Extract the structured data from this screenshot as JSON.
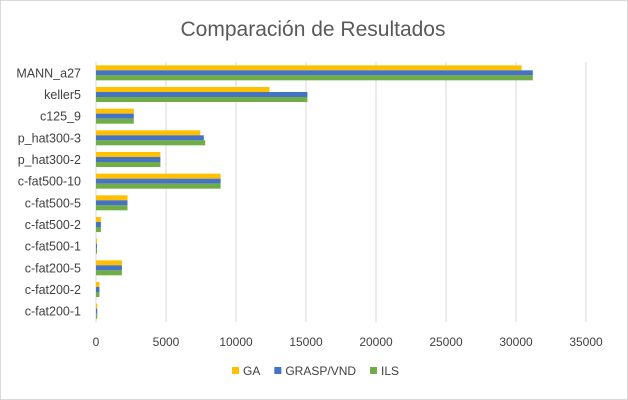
{
  "chart_data": {
    "type": "bar",
    "orientation": "horizontal",
    "title": "Comparación de Resultados",
    "xlabel": "",
    "ylabel": "",
    "xlim": [
      0,
      35000
    ],
    "xticks": [
      0,
      5000,
      10000,
      15000,
      20000,
      25000,
      30000,
      35000
    ],
    "xtick_labels": [
      "0",
      "5000",
      "10000",
      "15000",
      "20000",
      "25000",
      "30000",
      "35000"
    ],
    "grid": true,
    "legend_position": "bottom",
    "categories": [
      "MANN_a27",
      "keller5",
      "c125_9",
      "p_hat300-3",
      "p_hat300-2",
      "c-fat500-10",
      "c-fat500-5",
      "c-fat500-2",
      "c-fat500-1",
      "c-fat200-5",
      "c-fat200-2",
      "c-fat200-1"
    ],
    "series": [
      {
        "name": "GA",
        "color": "#FFC000",
        "values": [
          30400,
          12400,
          2700,
          7450,
          4600,
          8900,
          2250,
          350,
          70,
          1850,
          250,
          90
        ]
      },
      {
        "name": "GRASP/VND",
        "color": "#4472C4",
        "values": [
          31200,
          15100,
          2700,
          7700,
          4600,
          8900,
          2250,
          350,
          70,
          1850,
          250,
          90
        ]
      },
      {
        "name": "ILS",
        "color": "#70AD47",
        "values": [
          31200,
          15100,
          2700,
          7800,
          4600,
          8900,
          2250,
          350,
          70,
          1850,
          250,
          90
        ]
      }
    ]
  }
}
